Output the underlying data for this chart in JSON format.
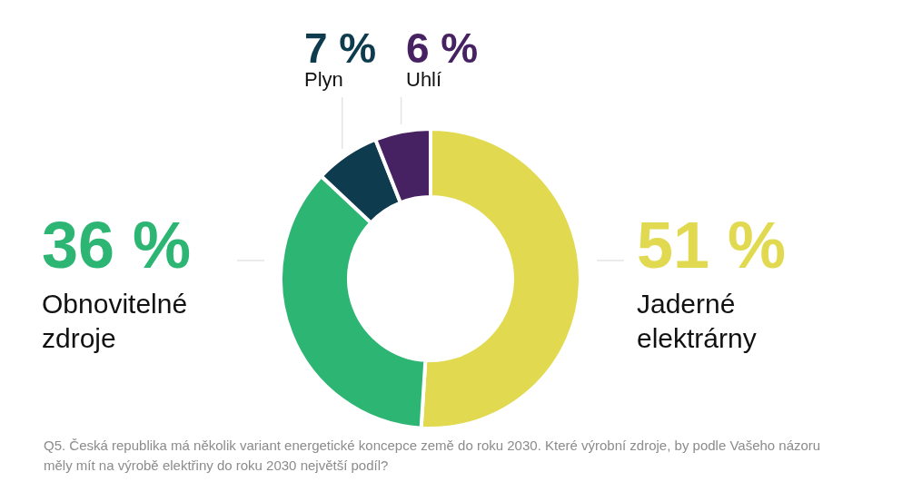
{
  "chart_data": {
    "type": "donut",
    "categories": [
      "Jaderné elektrárny",
      "Obnovitelné zdroje",
      "Plyn",
      "Uhlí"
    ],
    "values": [
      51,
      36,
      7,
      6
    ],
    "colors": [
      "#e1da50",
      "#2db573",
      "#0f3b4f",
      "#462262"
    ],
    "value_labels": [
      "51 %",
      "36 %",
      "7 %",
      "6 %"
    ],
    "annotations": [
      "Q5. Česká republika má několik variant energetické koncepce země do roku 2030. Které výrobní zdroje, by podle Vašeho názoru měly mít na výrobě elektřiny do roku 2030 největší podíl?"
    ]
  }
}
